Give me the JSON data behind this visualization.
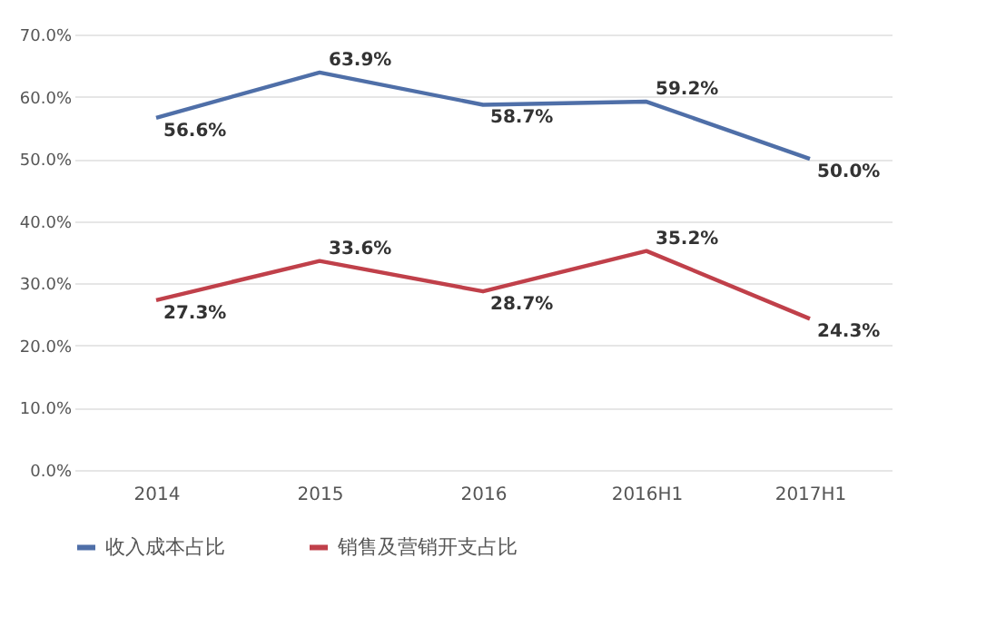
{
  "chart_data": {
    "type": "line",
    "categories": [
      "2014",
      "2015",
      "2016",
      "2016H1",
      "2017H1"
    ],
    "series": [
      {
        "name": "收入成本占比",
        "color": "#4f6fa8",
        "values": [
          56.6,
          63.9,
          58.7,
          59.2,
          50.0
        ],
        "value_labels": [
          "56.6%",
          "63.9%",
          "58.7%",
          "59.2%",
          "50.0%"
        ]
      },
      {
        "name": "销售及营销开支占比",
        "color": "#c0404a",
        "values": [
          27.3,
          33.6,
          28.7,
          35.2,
          24.3
        ],
        "value_labels": [
          "27.3%",
          "33.6%",
          "28.7%",
          "35.2%",
          "24.3%"
        ]
      }
    ],
    "ylim": [
      0,
      70
    ],
    "yticks": [
      {
        "value": 0,
        "label": "0.0%"
      },
      {
        "value": 10,
        "label": "10.0%"
      },
      {
        "value": 20,
        "label": "20.0%"
      },
      {
        "value": 30,
        "label": "30.0%"
      },
      {
        "value": 40,
        "label": "40.0%"
      },
      {
        "value": 50,
        "label": "50.0%"
      },
      {
        "value": 60,
        "label": "60.0%"
      },
      {
        "value": 70,
        "label": "70.0%"
      }
    ],
    "grid": "y",
    "legend": "bottom",
    "marker": "none",
    "line_style": "solid"
  }
}
